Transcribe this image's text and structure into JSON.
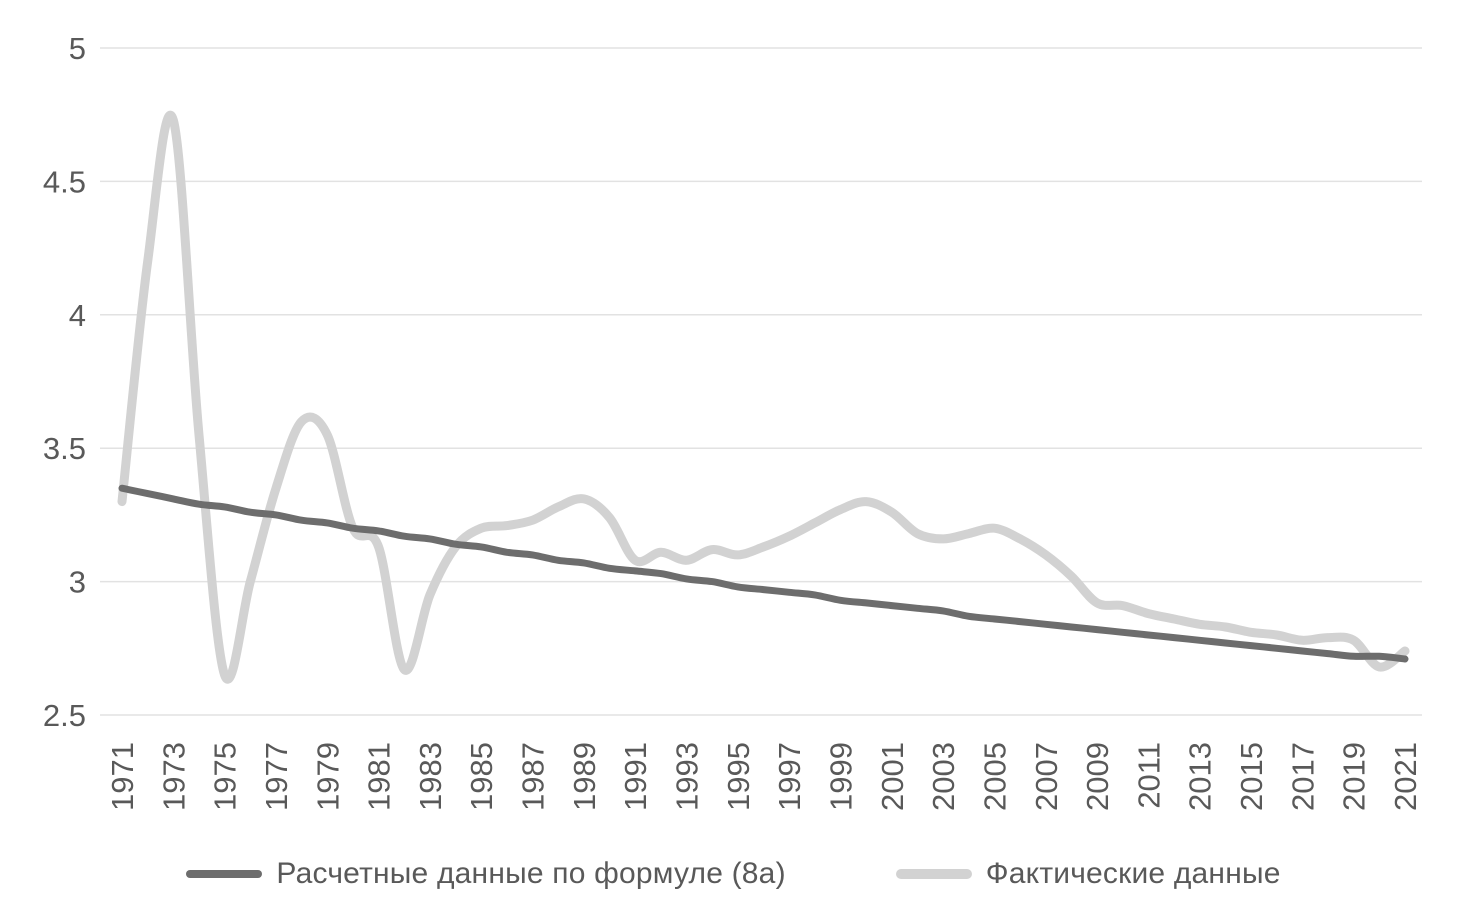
{
  "chart_data": {
    "type": "line",
    "title": "",
    "xlabel": "",
    "ylabel": "",
    "ylim": [
      2.5,
      5
    ],
    "y_ticks": [
      2.5,
      3,
      3.5,
      4,
      4.5,
      5
    ],
    "y_tick_labels": [
      "2.5",
      "3",
      "3.5",
      "4",
      "4.5",
      "5"
    ],
    "grid": "horizontal",
    "legend_position": "bottom",
    "x": [
      1971,
      1972,
      1973,
      1974,
      1975,
      1976,
      1977,
      1978,
      1979,
      1980,
      1981,
      1982,
      1983,
      1984,
      1985,
      1986,
      1987,
      1988,
      1989,
      1990,
      1991,
      1992,
      1993,
      1994,
      1995,
      1996,
      1997,
      1998,
      1999,
      2000,
      2001,
      2002,
      2003,
      2004,
      2005,
      2006,
      2007,
      2008,
      2009,
      2010,
      2011,
      2012,
      2013,
      2014,
      2015,
      2016,
      2017,
      2018,
      2019,
      2020,
      2021
    ],
    "x_tick_labels": [
      "1971",
      "1973",
      "1975",
      "1977",
      "1979",
      "1981",
      "1983",
      "1985",
      "1987",
      "1989",
      "1991",
      "1993",
      "1995",
      "1997",
      "1999",
      "2001",
      "2003",
      "2005",
      "2007",
      "2009",
      "2011",
      "2013",
      "2015",
      "2017",
      "2019",
      "2021"
    ],
    "series": [
      {
        "name": "Расчетные данные по формуле (8а)",
        "color": "#6d6d6d",
        "stroke_width": 7,
        "values": [
          3.35,
          3.33,
          3.31,
          3.29,
          3.28,
          3.26,
          3.25,
          3.23,
          3.22,
          3.2,
          3.19,
          3.17,
          3.16,
          3.14,
          3.13,
          3.11,
          3.1,
          3.08,
          3.07,
          3.05,
          3.04,
          3.03,
          3.01,
          3.0,
          2.98,
          2.97,
          2.96,
          2.95,
          2.93,
          2.92,
          2.91,
          2.9,
          2.89,
          2.87,
          2.86,
          2.85,
          2.84,
          2.83,
          2.82,
          2.81,
          2.8,
          2.79,
          2.78,
          2.77,
          2.76,
          2.75,
          2.74,
          2.73,
          2.72,
          2.72,
          2.71
        ]
      },
      {
        "name": "Фактические данные",
        "color": "#d2d2d2",
        "stroke_width": 9,
        "values": [
          3.3,
          4.2,
          4.73,
          3.55,
          2.65,
          3.0,
          3.35,
          3.6,
          3.55,
          3.2,
          3.13,
          2.67,
          2.95,
          3.13,
          3.2,
          3.21,
          3.23,
          3.28,
          3.31,
          3.24,
          3.08,
          3.11,
          3.08,
          3.12,
          3.1,
          3.13,
          3.17,
          3.22,
          3.27,
          3.3,
          3.26,
          3.18,
          3.16,
          3.18,
          3.2,
          3.16,
          3.1,
          3.02,
          2.92,
          2.91,
          2.88,
          2.86,
          2.84,
          2.83,
          2.81,
          2.8,
          2.78,
          2.79,
          2.78,
          2.68,
          2.74
        ]
      }
    ],
    "colors": {
      "gridline": "#e2e2e2",
      "axis_text": "#595959",
      "background": "#ffffff"
    }
  }
}
